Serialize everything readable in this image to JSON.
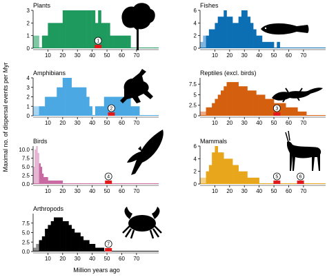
{
  "figure": {
    "ylabel": "Maximal no. of dispersal events per Myr",
    "xlabel": "Million years ago"
  },
  "chart_data": [
    {
      "type": "area",
      "title": "Plants",
      "color": "#1f9a5e",
      "recent_color": "#7ec9a4",
      "ylim": [
        0,
        3
      ],
      "yticks": [
        0,
        1,
        2,
        3
      ],
      "xlim": [
        0,
        85
      ],
      "xticks": [
        10,
        20,
        30,
        40,
        50,
        60,
        70
      ],
      "silhouette": "tree-icon",
      "x": [
        0,
        1,
        2,
        3,
        4,
        5,
        6,
        7,
        8,
        10,
        12,
        14,
        16,
        18,
        20,
        22,
        24,
        26,
        28,
        30,
        32,
        34,
        36,
        38,
        40,
        42,
        44,
        46,
        48,
        50,
        52,
        54,
        56,
        58,
        60,
        62,
        64,
        66,
        68,
        70,
        72,
        74,
        76,
        78,
        80,
        84
      ],
      "y": [
        1,
        1,
        1,
        1,
        0,
        0,
        1,
        1,
        1,
        2,
        2,
        2,
        2,
        2,
        3,
        3,
        3,
        3,
        3,
        3,
        3,
        3,
        3,
        3,
        3,
        2,
        3,
        2,
        2,
        2,
        1,
        1,
        1,
        1,
        1,
        1,
        1,
        0,
        0,
        0,
        0,
        0,
        0,
        0,
        0,
        0
      ],
      "events": [
        {
          "label": "1",
          "x": 44
        }
      ]
    },
    {
      "type": "area",
      "title": "Fishes",
      "color": "#0c6fb4",
      "recent_color": "#7fb5dc",
      "ylim": [
        0,
        6
      ],
      "yticks": [
        0,
        2,
        4,
        6
      ],
      "xlim": [
        0,
        85
      ],
      "xticks": [
        10,
        20,
        30,
        40,
        50,
        60,
        70
      ],
      "silhouette": "fish-icon",
      "x": [
        0,
        2,
        4,
        6,
        8,
        10,
        12,
        14,
        16,
        18,
        20,
        22,
        24,
        26,
        28,
        30,
        32,
        34,
        36,
        38,
        40,
        42,
        44,
        46,
        48,
        50,
        52,
        54,
        56,
        58,
        60,
        62,
        64,
        66,
        68,
        70,
        72,
        74,
        76,
        78,
        80,
        84
      ],
      "y": [
        1,
        2,
        2,
        3,
        3,
        4,
        5,
        5,
        6,
        5,
        5,
        4,
        4,
        5,
        6,
        6,
        5,
        4,
        3,
        2,
        2,
        1,
        1,
        1,
        1,
        0,
        1,
        0,
        0,
        0,
        0,
        0,
        0,
        0,
        0,
        0,
        0,
        0,
        0,
        0,
        0,
        0
      ],
      "events": []
    },
    {
      "type": "area",
      "title": "Amphibians",
      "color": "#4ba8e2",
      "recent_color": "#a8d5f1",
      "ylim": [
        0,
        4
      ],
      "yticks": [
        0,
        1,
        2,
        3,
        4
      ],
      "xlim": [
        0,
        85
      ],
      "xticks": [
        10,
        20,
        30,
        40,
        50,
        60,
        70
      ],
      "silhouette": "frog-icon",
      "x": [
        0,
        2,
        4,
        6,
        8,
        10,
        12,
        14,
        16,
        18,
        20,
        22,
        24,
        26,
        28,
        30,
        32,
        34,
        36,
        38,
        40,
        42,
        44,
        46,
        48,
        50,
        52,
        54,
        56,
        58,
        60,
        62,
        64,
        66,
        68,
        70,
        72,
        74,
        76,
        78,
        80,
        84
      ],
      "y": [
        1,
        1,
        1,
        1,
        2,
        2,
        2,
        2,
        3,
        3,
        4,
        4,
        4,
        3,
        3,
        3,
        3,
        3,
        2,
        1,
        0,
        1,
        1,
        1,
        2,
        2,
        2,
        2,
        2,
        2,
        2,
        2,
        2,
        1,
        1,
        1,
        0,
        0,
        0,
        0,
        0,
        0
      ],
      "events": [
        {
          "label": "2",
          "x": 53
        }
      ]
    },
    {
      "type": "area",
      "title": "Reptiles (excl. birds)",
      "color": "#d4600f",
      "recent_color": "#ecaa86",
      "ylim": [
        0,
        9
      ],
      "yticks": [
        0,
        2.5,
        5,
        7.5
      ],
      "ytick_labels": [
        "0",
        "2.5",
        "5",
        "7.5"
      ],
      "xlim": [
        0,
        85
      ],
      "xticks": [
        10,
        20,
        30,
        40,
        50,
        60,
        70
      ],
      "silhouette": "lizard-icon",
      "x": [
        0,
        2,
        4,
        6,
        8,
        10,
        12,
        14,
        16,
        18,
        20,
        22,
        24,
        26,
        28,
        30,
        32,
        34,
        36,
        38,
        40,
        42,
        44,
        46,
        48,
        50,
        52,
        54,
        56,
        58,
        60,
        62,
        64,
        66,
        68,
        70,
        72,
        74,
        76,
        78,
        80,
        84
      ],
      "y": [
        1,
        1,
        2,
        2,
        3,
        4,
        5,
        6,
        7,
        8,
        8,
        8,
        8,
        7,
        7,
        7,
        6,
        6,
        6,
        5,
        5,
        5,
        4,
        4,
        4,
        3,
        3,
        3,
        3,
        2,
        2,
        2,
        2,
        1,
        1,
        1,
        0,
        0,
        0,
        0,
        0,
        0
      ],
      "events": [
        {
          "label": "3",
          "x": 52
        }
      ]
    },
    {
      "type": "area",
      "title": "Birds",
      "color": "#c96aa3",
      "recent_color": "#e6b5d3",
      "ylim": [
        0,
        11
      ],
      "yticks": [
        0,
        2.5,
        5,
        7.5,
        10
      ],
      "ytick_labels": [
        "0.0",
        "2.5",
        "5.0",
        "7.5",
        "10.0"
      ],
      "xlim": [
        0,
        85
      ],
      "xticks": [
        10,
        20,
        30,
        40,
        50,
        60,
        70
      ],
      "silhouette": "parrot-icon",
      "x": [
        0,
        1,
        2,
        3,
        4,
        5,
        6,
        7,
        8,
        10,
        12,
        14,
        16,
        18,
        20,
        22,
        24,
        26,
        28,
        30,
        34,
        40,
        50,
        60,
        70,
        84
      ],
      "y": [
        5,
        10,
        11,
        9,
        6,
        5,
        3,
        2,
        2,
        1,
        1,
        1,
        1,
        1,
        0,
        0,
        0,
        0,
        0,
        0,
        0,
        0,
        0,
        0,
        0,
        0
      ],
      "events": [
        {
          "label": "4",
          "x": 51
        }
      ]
    },
    {
      "type": "area",
      "title": "Mammals",
      "color": "#e8a61c",
      "recent_color": "#f4d28a",
      "ylim": [
        0,
        6
      ],
      "yticks": [
        0,
        2,
        4,
        6
      ],
      "xlim": [
        0,
        85
      ],
      "xticks": [
        10,
        20,
        30,
        40,
        50,
        60,
        70
      ],
      "silhouette": "antelope-icon",
      "x": [
        0,
        2,
        4,
        6,
        8,
        10,
        12,
        14,
        16,
        18,
        20,
        22,
        24,
        26,
        28,
        30,
        32,
        34,
        36,
        38,
        40,
        42,
        44,
        46,
        48,
        50,
        60,
        70,
        84
      ],
      "y": [
        1,
        1,
        2,
        3,
        5,
        6,
        5,
        5,
        4,
        4,
        4,
        3,
        3,
        2,
        2,
        2,
        1,
        1,
        1,
        1,
        0,
        0,
        0,
        0,
        0,
        0,
        0,
        0,
        0
      ],
      "events": [
        {
          "label": "5",
          "x": 52
        },
        {
          "label": "6",
          "x": 68
        }
      ]
    },
    {
      "type": "area",
      "title": "Arthropods",
      "color": "#000000",
      "recent_color": "#8c8c8c",
      "ylim": [
        0,
        10
      ],
      "yticks": [
        0,
        2.5,
        5,
        7.5
      ],
      "ytick_labels": [
        "0.0",
        "2.5",
        "5.0",
        "7.5"
      ],
      "xlim": [
        0,
        85
      ],
      "xticks": [
        10,
        20,
        30,
        40,
        50,
        60,
        70
      ],
      "xtick_labels": [
        "10",
        "20",
        "30",
        "40",
        "50",
        "60",
        "70"
      ],
      "silhouette": "crab-icon",
      "x": [
        0,
        2,
        4,
        6,
        8,
        10,
        12,
        14,
        16,
        18,
        20,
        22,
        24,
        26,
        28,
        30,
        32,
        34,
        36,
        38,
        40,
        42,
        44,
        46,
        48,
        50,
        52,
        54,
        56,
        84
      ],
      "y": [
        1,
        2,
        3,
        4,
        6,
        7,
        8,
        9,
        9,
        9,
        8,
        8,
        7,
        6,
        5,
        5,
        4,
        3,
        3,
        2,
        2,
        1,
        1,
        1,
        0,
        0,
        0,
        0,
        0,
        0
      ],
      "events": [
        {
          "label": "7",
          "x": 51
        }
      ]
    }
  ]
}
